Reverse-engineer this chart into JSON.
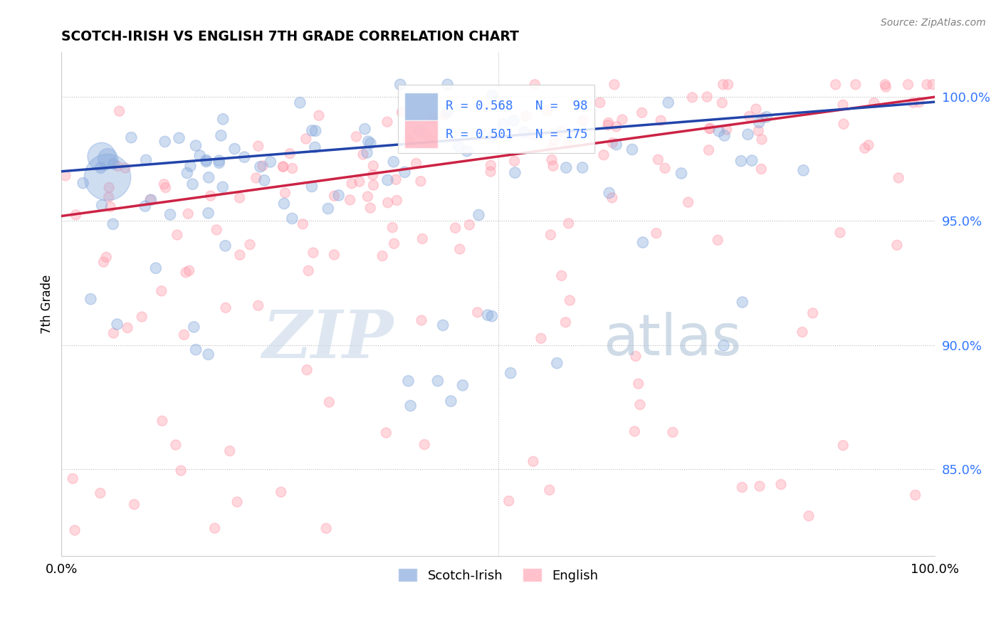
{
  "title": "SCOTCH-IRISH VS ENGLISH 7TH GRADE CORRELATION CHART",
  "source": "Source: ZipAtlas.com",
  "ylabel": "7th Grade",
  "r_scotch": 0.568,
  "n_scotch": 98,
  "r_english": 0.501,
  "n_english": 175,
  "color_scotch": "#88aadd",
  "color_english": "#ff99aa",
  "color_line_scotch": "#2244aa",
  "color_line_english": "#cc2244",
  "color_r_value": "#3377ff",
  "ytick_labels": [
    "85.0%",
    "90.0%",
    "95.0%",
    "100.0%"
  ],
  "ytick_values": [
    0.85,
    0.9,
    0.95,
    1.0
  ],
  "xmin": 0.0,
  "xmax": 1.0,
  "ymin": 0.815,
  "ymax": 1.018,
  "watermark_zip": "ZIP",
  "watermark_atlas": "atlas",
  "legend_scotch": "Scotch-Irish",
  "legend_english": "English",
  "line_scotch_start": 0.97,
  "line_scotch_end": 0.998,
  "line_english_start": 0.952,
  "line_english_end": 1.0
}
